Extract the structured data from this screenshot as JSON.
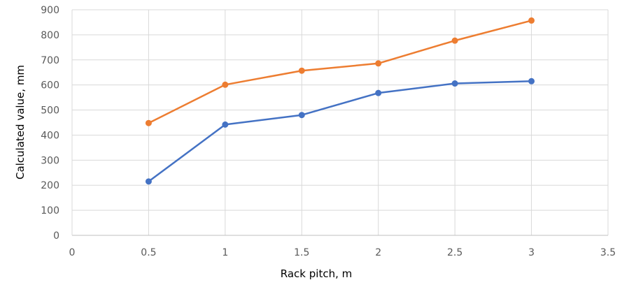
{
  "chart_data": {
    "type": "line",
    "title": "",
    "xlabel": "Rack pitch, m",
    "ylabel": "Calculated value, mm",
    "xlim": [
      0,
      3.5
    ],
    "ylim": [
      0,
      900
    ],
    "x_ticks": [
      0,
      0.5,
      1,
      1.5,
      2,
      2.5,
      3,
      3.5
    ],
    "y_ticks": [
      0,
      100,
      200,
      300,
      400,
      500,
      600,
      700,
      800,
      900
    ],
    "grid": true,
    "legend": "none",
    "series": [
      {
        "color": "#4472C4",
        "x": [
          0.5,
          1,
          1.5,
          2,
          2.5,
          3
        ],
        "y": [
          215,
          442,
          480,
          568,
          606,
          615
        ]
      },
      {
        "color": "#ED7D31",
        "x": [
          0.5,
          1,
          1.5,
          2,
          2.5,
          3
        ],
        "y": [
          448,
          601,
          657,
          686,
          777,
          857
        ]
      }
    ]
  }
}
